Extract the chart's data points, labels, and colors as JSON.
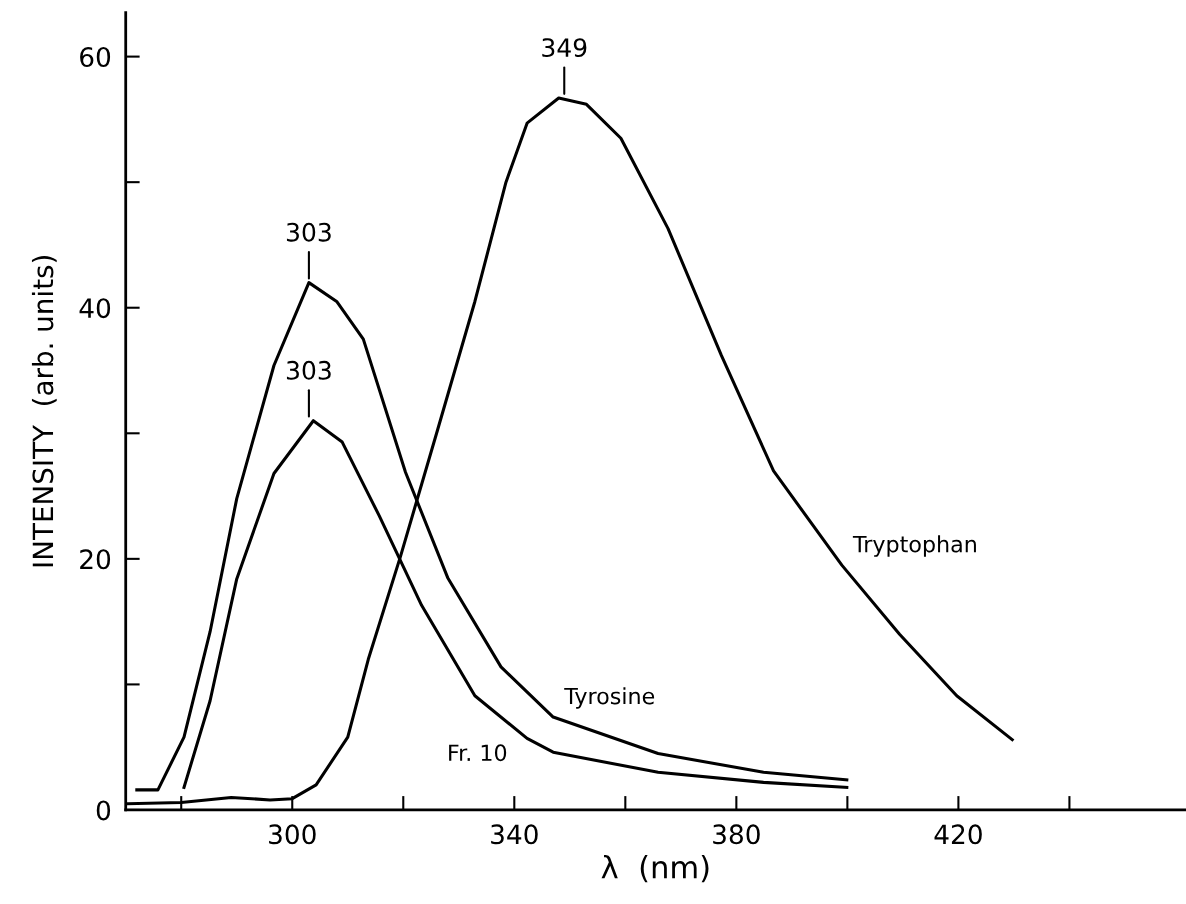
{
  "chart_data": {
    "type": "line",
    "xlabel": "λ  (nm)",
    "ylabel": "INTENSITY  (arb. units)",
    "xlim": [
      270,
      461
    ],
    "xticks": [
      {
        "value": 280,
        "label": null
      },
      300,
      {
        "value": 320,
        "label": null
      },
      340,
      {
        "value": 360,
        "label": null
      },
      380,
      {
        "value": 400,
        "label": null
      },
      420,
      {
        "value": 440,
        "label": null
      }
    ],
    "ylim": [
      0,
      63.5
    ],
    "yticks": [
      0,
      {
        "value": 10,
        "label": null
      },
      20,
      {
        "value": 30,
        "label": null
      },
      40,
      {
        "value": 50,
        "label": null
      },
      60
    ],
    "grid": false,
    "legend": false,
    "marker": "none",
    "line_style": "solid",
    "series": [
      {
        "color": "#000000",
        "x": [
          270.4,
          280,
          289,
          296,
          300,
          304.3,
          310,
          313.7,
          319.5,
          326.2,
          332.9,
          338.5,
          342.3,
          348,
          353,
          359.2,
          367.7,
          377.3,
          386.7,
          399,
          409.4,
          419.7,
          429.7
        ],
        "values": [
          0.5,
          0.6,
          1.0,
          0.8,
          0.9,
          2.0,
          5.8,
          12.0,
          20.2,
          30.3,
          40.5,
          50.0,
          54.7,
          56.7,
          56.2,
          53.5,
          46.3,
          36.2,
          27.0,
          19.5,
          14.0,
          9.1,
          5.6
        ]
      },
      {
        "color": "#000000",
        "x": [
          272,
          275.8,
          280.5,
          285.2,
          290,
          296.7,
          303,
          308,
          312.8,
          320.4,
          328,
          337.6,
          347,
          365.9,
          384.9,
          399.9
        ],
        "values": [
          1.6,
          1.6,
          5.8,
          14.2,
          24.8,
          35.4,
          42.0,
          40.5,
          37.5,
          26.9,
          18.5,
          11.4,
          7.4,
          4.5,
          3.0,
          2.4
        ]
      },
      {
        "color": "#000000",
        "x": [
          280.5,
          285.2,
          290,
          296.7,
          303.8,
          309,
          315.7,
          323.3,
          332.9,
          342.3,
          347,
          365.9,
          384.9,
          399.9
        ],
        "values": [
          1.8,
          8.7,
          18.4,
          26.8,
          31.0,
          29.3,
          23.4,
          16.3,
          9.1,
          5.7,
          4.6,
          3.0,
          2.2,
          1.8
        ]
      }
    ],
    "annotations": [
      {
        "text": "349",
        "x": 349,
        "y": 56.7
      },
      {
        "text": "303",
        "x": 303,
        "y": 42.0
      },
      {
        "text": "303",
        "x": 303,
        "y": 31.0
      },
      {
        "text": "Tryptophan",
        "x": 399,
        "y": 19.5
      },
      {
        "text": "Tyrosine",
        "x": 347,
        "y": 7.4
      },
      {
        "text": "Fr. 10",
        "x": 342.3,
        "y": 5.7
      }
    ]
  }
}
